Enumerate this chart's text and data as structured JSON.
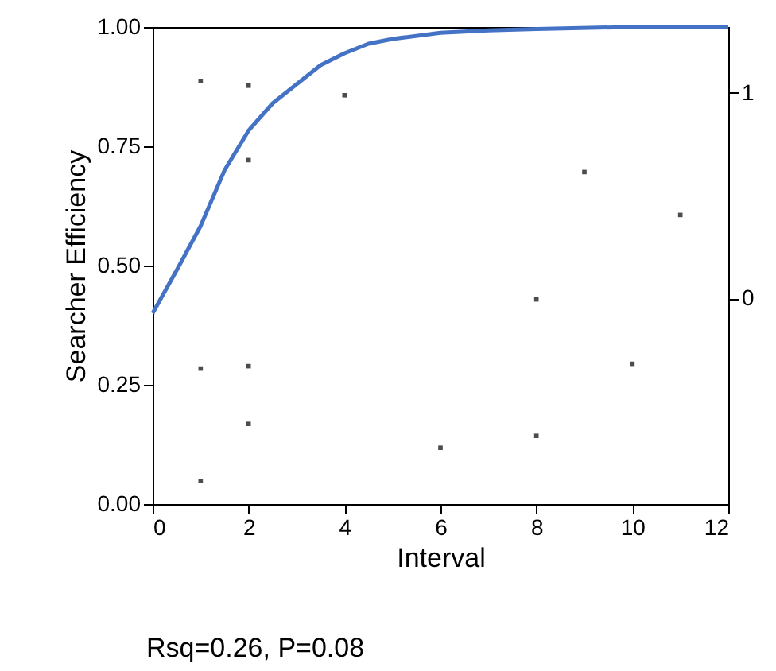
{
  "chart_data": {
    "type": "scatter",
    "xlabel": "Interval",
    "ylabel": "Searcher Efficiency",
    "xlim": [
      0,
      12
    ],
    "xticks": [
      0,
      2,
      4,
      6,
      8,
      10,
      12
    ],
    "ylim": [
      0,
      1
    ],
    "yticks": [
      {
        "value": 0,
        "label": "0.00"
      },
      {
        "value": 0.25,
        "label": "0.25"
      },
      {
        "value": 0.5,
        "label": "0.50"
      },
      {
        "value": 0.75,
        "label": "0.75"
      },
      {
        "value": 1,
        "label": "1.00"
      }
    ],
    "y2lim": [
      -1,
      1.32
    ],
    "y2ticks": [
      0,
      1
    ],
    "grid": false,
    "marker": "square",
    "annotations": [
      "Rsq=0.26, P=0.08"
    ],
    "series": [
      {
        "color": "#000000",
        "x": [
          1,
          2,
          4,
          2,
          9,
          11,
          8,
          1,
          2,
          10,
          2,
          8,
          6,
          1
        ],
        "values": [
          0.887,
          0.877,
          0.857,
          0.721,
          0.696,
          0.606,
          0.429,
          0.284,
          0.289,
          0.294,
          0.168,
          0.143,
          0.118,
          0.048
        ]
      },
      {
        "type": "line",
        "color": "#4472c4",
        "marker": "none",
        "x": [
          0,
          0.5,
          1,
          1.5,
          2,
          2.5,
          3,
          3.5,
          4,
          4.5,
          5,
          6,
          7,
          8,
          10,
          12
        ],
        "values": [
          0.4,
          0.49,
          0.583,
          0.7,
          0.783,
          0.84,
          0.88,
          0.92,
          0.945,
          0.965,
          0.975,
          0.988,
          0.993,
          0.996,
          1.0,
          1.0
        ]
      }
    ]
  }
}
